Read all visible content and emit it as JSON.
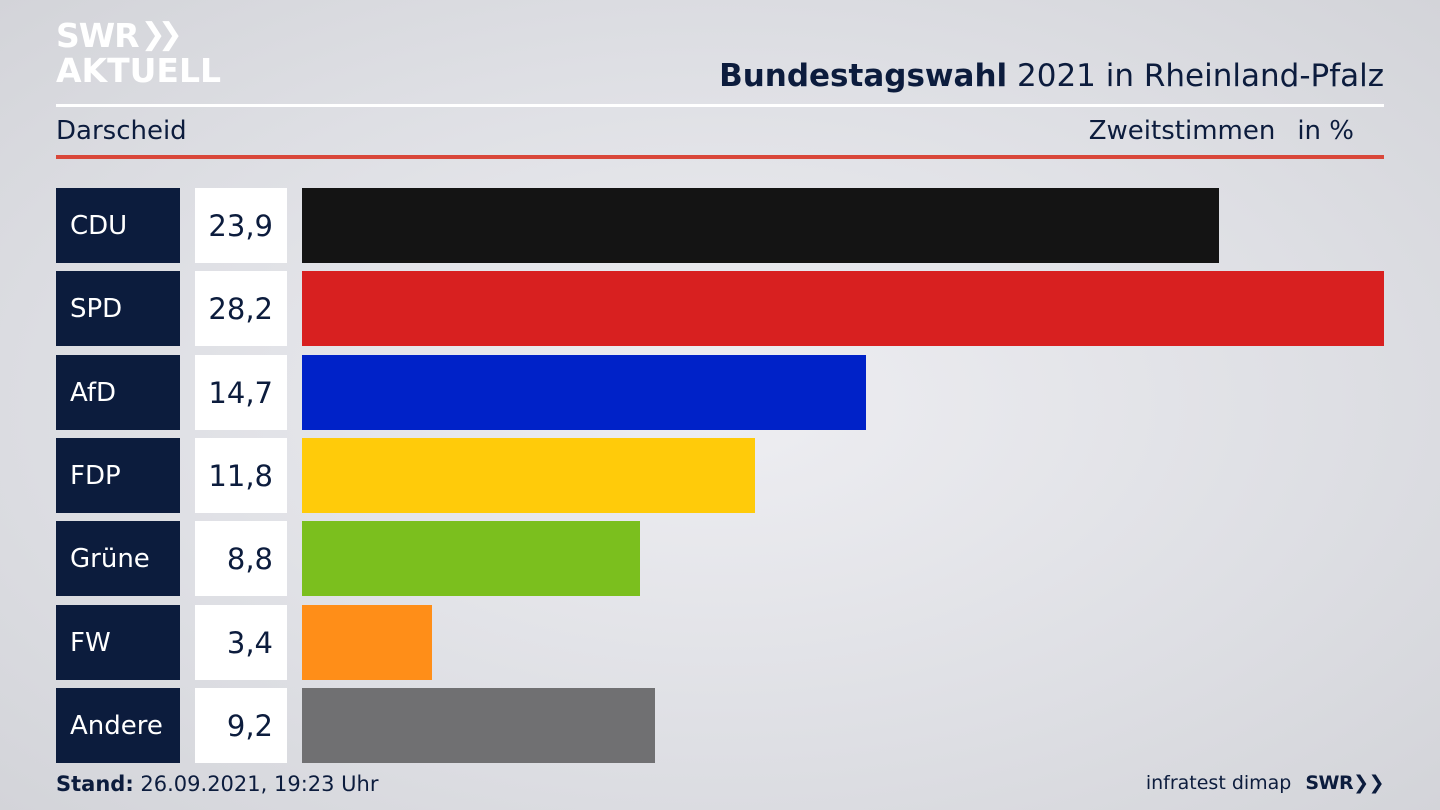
{
  "header": {
    "logo_line1": "SWR",
    "logo_line2": "AKTUELL",
    "title_bold": "Bundestagswahl",
    "title_rest": " 2021 in Rheinland-Pfalz",
    "location": "Darscheid",
    "measure": "Zweitstimmen",
    "unit": "in %"
  },
  "chart_data": {
    "type": "bar",
    "orientation": "horizontal",
    "categories": [
      "CDU",
      "SPD",
      "AfD",
      "FDP",
      "Grüne",
      "FW",
      "Andere"
    ],
    "values": [
      23.9,
      28.2,
      14.7,
      11.8,
      8.8,
      3.4,
      9.2
    ],
    "value_labels": [
      "23,9",
      "28,2",
      "14,7",
      "11,8",
      "8,8",
      "3,4",
      "9,2"
    ],
    "colors": [
      "#141414",
      "#d82020",
      "#0022c8",
      "#ffcb0a",
      "#7bbf1e",
      "#ff8e18",
      "#707072"
    ],
    "xlim": [
      0,
      28.2
    ],
    "grid": false
  },
  "footer": {
    "stand_label": "Stand:",
    "stand_value": " 26.09.2021, 19:23 Uhr",
    "source": "infratest dimap",
    "brand": "SWR"
  }
}
